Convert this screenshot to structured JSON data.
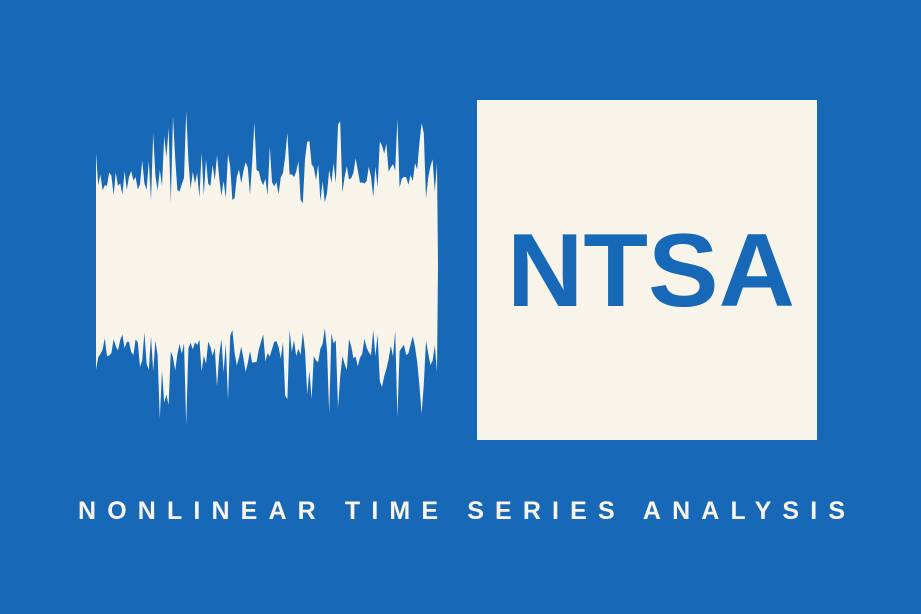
{
  "logo": {
    "acronym": "NTSA",
    "tagline": "NONLINEAR TIME SERIES ANALYSIS"
  }
}
